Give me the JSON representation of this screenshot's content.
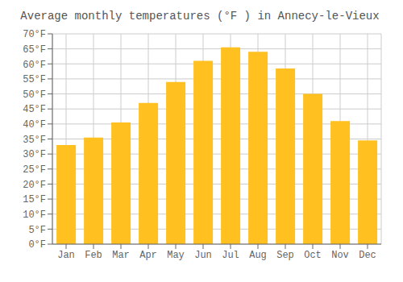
{
  "chart_data": {
    "type": "bar",
    "title": "Average monthly temperatures (°F ) in Annecy-le-Vieux",
    "categories": [
      "Jan",
      "Feb",
      "Mar",
      "Apr",
      "May",
      "Jun",
      "Jul",
      "Aug",
      "Sep",
      "Oct",
      "Nov",
      "Dec"
    ],
    "values": [
      33,
      35.5,
      40.5,
      47,
      54,
      61,
      65.5,
      64,
      58.5,
      50,
      41,
      34.5
    ],
    "color": "#FFC020",
    "ylim": [
      0,
      70
    ],
    "yticks": [
      {
        "value": 0,
        "label": "0°F"
      },
      {
        "value": 5,
        "label": "5°F"
      },
      {
        "value": 10,
        "label": "10°F"
      },
      {
        "value": 15,
        "label": "15°F"
      },
      {
        "value": 20,
        "label": "20°F"
      },
      {
        "value": 25,
        "label": "25°F"
      },
      {
        "value": 30,
        "label": "30°F"
      },
      {
        "value": 35,
        "label": "35°F"
      },
      {
        "value": 40,
        "label": "40°F"
      },
      {
        "value": 45,
        "label": "45°F"
      },
      {
        "value": 50,
        "label": "50°F"
      },
      {
        "value": 55,
        "label": "55°F"
      },
      {
        "value": 60,
        "label": "60°F"
      },
      {
        "value": 65,
        "label": "65°F"
      },
      {
        "value": 70,
        "label": "70°F"
      }
    ],
    "grid": true
  }
}
